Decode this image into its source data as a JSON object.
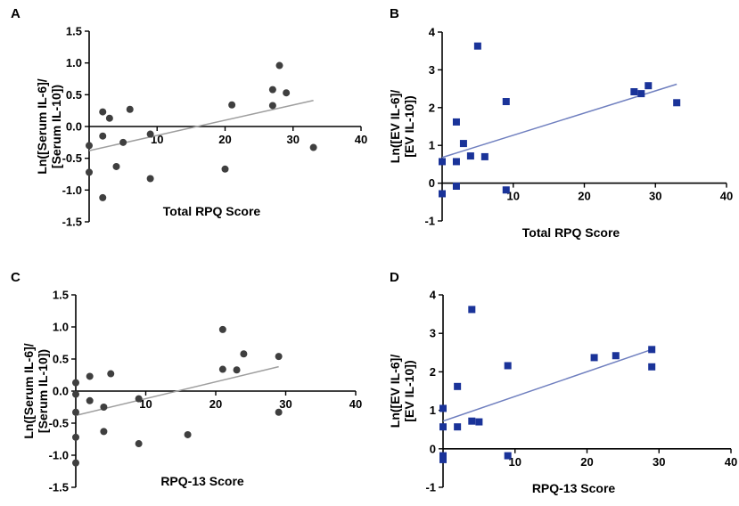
{
  "chart_data": [
    {
      "type": "scatter",
      "panel": "A",
      "xlabel": "Total RPQ Score",
      "ylabel_lines": [
        "Ln([Serum IL-6]/",
        "[Serum IL-10])"
      ],
      "xlim": [
        0,
        40
      ],
      "ylim": [
        -1.5,
        1.5
      ],
      "xticks": [
        10,
        20,
        30,
        40
      ],
      "yticks": [
        -1.5,
        -1.0,
        -0.5,
        0.0,
        0.5,
        1.0,
        1.5
      ],
      "ytick_labels": [
        "-1.5",
        "-1.0",
        "-0.5",
        "0.0",
        "0.5",
        "1.0",
        "1.5"
      ],
      "marker": "circle",
      "marker_color": "#3f3f3f",
      "line_color": "#9e9e9e",
      "fit": [
        [
          0,
          -0.38
        ],
        [
          33,
          0.41
        ]
      ],
      "points": [
        [
          0,
          -0.3
        ],
        [
          0,
          -0.72
        ],
        [
          2,
          0.23
        ],
        [
          2,
          -0.15
        ],
        [
          2,
          -1.12
        ],
        [
          3,
          0.13
        ],
        [
          4,
          -0.63
        ],
        [
          5,
          -0.25
        ],
        [
          6,
          0.27
        ],
        [
          9,
          -0.12
        ],
        [
          9,
          -0.82
        ],
        [
          20,
          -0.67
        ],
        [
          21,
          0.34
        ],
        [
          27,
          0.58
        ],
        [
          27,
          0.33
        ],
        [
          28,
          0.96
        ],
        [
          29,
          0.53
        ],
        [
          33,
          -0.33
        ]
      ]
    },
    {
      "type": "scatter",
      "panel": "B",
      "xlabel": "Total RPQ Score",
      "ylabel_lines": [
        "Ln([EV IL-6]/",
        "[EV IL-10])"
      ],
      "xlim": [
        0,
        40
      ],
      "ylim": [
        -1,
        4
      ],
      "xticks": [
        10,
        20,
        30,
        40
      ],
      "yticks": [
        -1,
        0,
        1,
        2,
        3,
        4
      ],
      "ytick_labels": [
        "-1",
        "0",
        "1",
        "2",
        "3",
        "4"
      ],
      "marker": "square",
      "marker_color": "#1a3399",
      "line_color": "#6f7fbf",
      "fit": [
        [
          0,
          0.68
        ],
        [
          33,
          2.62
        ]
      ],
      "points": [
        [
          0,
          0.57
        ],
        [
          0,
          -0.28
        ],
        [
          2,
          1.62
        ],
        [
          2,
          0.57
        ],
        [
          2,
          -0.08
        ],
        [
          3,
          1.05
        ],
        [
          4,
          0.72
        ],
        [
          5,
          3.63
        ],
        [
          6,
          0.7
        ],
        [
          9,
          2.16
        ],
        [
          9,
          -0.18
        ],
        [
          27,
          2.42
        ],
        [
          28,
          2.37
        ],
        [
          29,
          2.58
        ],
        [
          33,
          2.13
        ]
      ]
    },
    {
      "type": "scatter",
      "panel": "C",
      "xlabel": "RPQ-13 Score",
      "ylabel_lines": [
        "Ln([Serum IL-6]/",
        "[Serum IL-10])"
      ],
      "xlim": [
        0,
        40
      ],
      "ylim": [
        -1.5,
        1.5
      ],
      "xticks": [
        10,
        20,
        30,
        40
      ],
      "yticks": [
        -1.5,
        -1.0,
        -0.5,
        0.0,
        0.5,
        1.0,
        1.5
      ],
      "ytick_labels": [
        "-1.5",
        "-1.0",
        "-0.5",
        "0.0",
        "0.5",
        "1.0",
        "1.5"
      ],
      "marker": "circle",
      "marker_color": "#3f3f3f",
      "line_color": "#9e9e9e",
      "fit": [
        [
          0,
          -0.38
        ],
        [
          29,
          0.38
        ]
      ],
      "points": [
        [
          0,
          0.13
        ],
        [
          0,
          -0.05
        ],
        [
          0,
          -0.33
        ],
        [
          0,
          -0.72
        ],
        [
          0,
          -1.12
        ],
        [
          2,
          0.23
        ],
        [
          2,
          -0.15
        ],
        [
          4,
          -0.25
        ],
        [
          4,
          -0.63
        ],
        [
          5,
          0.27
        ],
        [
          9,
          -0.12
        ],
        [
          9,
          -0.82
        ],
        [
          16,
          -0.68
        ],
        [
          21,
          0.96
        ],
        [
          21,
          0.34
        ],
        [
          23,
          0.33
        ],
        [
          24,
          0.58
        ],
        [
          29,
          0.54
        ],
        [
          29,
          -0.33
        ]
      ]
    },
    {
      "type": "scatter",
      "panel": "D",
      "xlabel": "RPQ-13 Score",
      "ylabel_lines": [
        "Ln([EV IL-6]/",
        "[EV IL-10])"
      ],
      "xlim": [
        0,
        40
      ],
      "ylim": [
        -1,
        4
      ],
      "xticks": [
        10,
        20,
        30,
        40
      ],
      "yticks": [
        -1,
        0,
        1,
        2,
        3,
        4
      ],
      "ytick_labels": [
        "-1",
        "0",
        "1",
        "2",
        "3",
        "4"
      ],
      "marker": "square",
      "marker_color": "#1a3399",
      "line_color": "#6f7fbf",
      "fit": [
        [
          0,
          0.72
        ],
        [
          29,
          2.58
        ]
      ],
      "points": [
        [
          0,
          1.05
        ],
        [
          0,
          0.57
        ],
        [
          0,
          -0.18
        ],
        [
          0,
          -0.28
        ],
        [
          2,
          1.62
        ],
        [
          2,
          0.57
        ],
        [
          4,
          3.62
        ],
        [
          4,
          0.72
        ],
        [
          5,
          0.7
        ],
        [
          9,
          2.16
        ],
        [
          9,
          -0.18
        ],
        [
          21,
          2.37
        ],
        [
          24,
          2.42
        ],
        [
          29,
          2.58
        ],
        [
          29,
          2.13
        ]
      ]
    }
  ]
}
